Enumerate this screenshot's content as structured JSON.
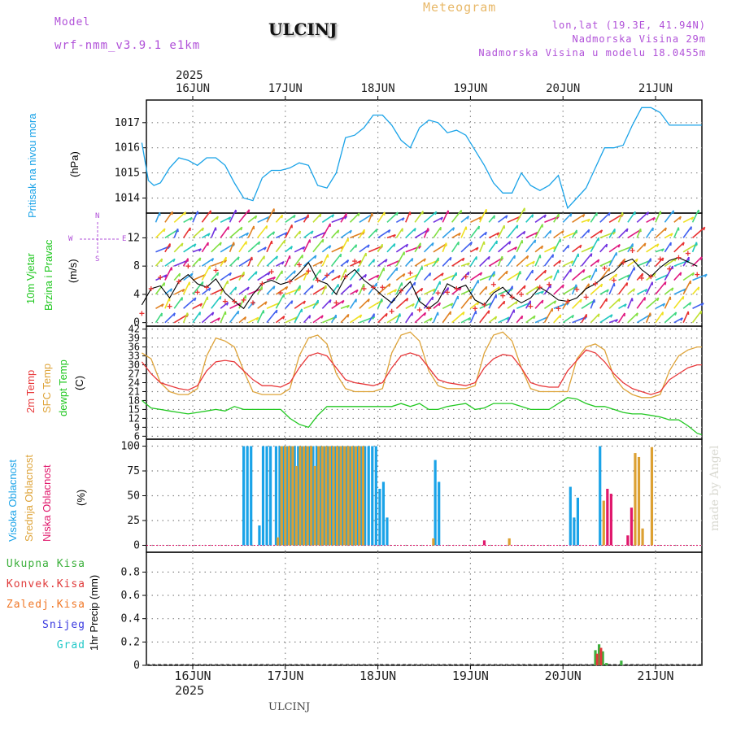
{
  "header": {
    "model_label": "Model",
    "model_name": "wrf-nmm_v3.9.1 e1km",
    "station": "ULCINJ",
    "meteogram": "Meteogram",
    "coords": "lon,lat (19.3E, 41.94N)",
    "altitude": "Nadmorska Visina 29m",
    "model_altitude": "Nadmorska Visina u modelu 18.0455m",
    "footer_station": "ULCINJ",
    "watermark": "made by Angel"
  },
  "colors": {
    "pressure": "#1aa3e8",
    "temp2m": "#e8383a",
    "sfc": "#dea43a",
    "dew": "#22c822",
    "high_cloud": "#1aa3e8",
    "mid_cloud": "#dca032",
    "low_cloud": "#e0186c",
    "total_precip": "#3cb03c",
    "conv_precip": "#e03a3a",
    "freezing": "#f07828",
    "snow": "#3a3ae0",
    "grad": "#20c8c8",
    "title_purple": "#b050d8",
    "meteo_orange": "#e8b868"
  },
  "chart_data": [
    {
      "type": "line",
      "panel": "pressure",
      "ylabel": "Pritisak na nivou mora",
      "unit": "(hPa)",
      "xlabel_year": "2025",
      "x_ticks": [
        "16JUN",
        "17JUN",
        "18JUN",
        "19JUN",
        "20JUN",
        "21JUN"
      ],
      "y_ticks": [
        1014,
        1015,
        1016,
        1017
      ],
      "ylim": [
        1013.4,
        1017.9
      ],
      "series": [
        {
          "x": [
            -0.55,
            -0.48,
            -0.42,
            -0.35,
            -0.25,
            -0.15,
            -0.05,
            0.05,
            0.15,
            0.25,
            0.35,
            0.45,
            0.55,
            0.65,
            0.75,
            0.85,
            0.95,
            1.05,
            1.15,
            1.25,
            1.35,
            1.45,
            1.55,
            1.65,
            1.75,
            1.85,
            1.95,
            2.05,
            2.15,
            2.25,
            2.35,
            2.45,
            2.55,
            2.65,
            2.75,
            2.85,
            2.95,
            3.05,
            3.15,
            3.25,
            3.35,
            3.45,
            3.55,
            3.65,
            3.75,
            3.85,
            3.95,
            4.05,
            4.15,
            4.25,
            4.35,
            4.45,
            4.55,
            4.65,
            4.75,
            4.85,
            4.95,
            5.05,
            5.15,
            5.25,
            5.35,
            5.45,
            5.5
          ],
          "y": [
            1016.2,
            1014.7,
            1014.5,
            1014.6,
            1015.2,
            1015.6,
            1015.5,
            1015.3,
            1015.6,
            1015.6,
            1015.3,
            1014.6,
            1014.0,
            1013.9,
            1014.8,
            1015.1,
            1015.1,
            1015.2,
            1015.4,
            1015.3,
            1014.5,
            1014.4,
            1015.0,
            1016.4,
            1016.5,
            1016.8,
            1017.3,
            1017.3,
            1016.9,
            1016.3,
            1016.0,
            1016.8,
            1017.1,
            1017.0,
            1016.6,
            1016.7,
            1016.5,
            1015.9,
            1015.3,
            1014.6,
            1014.2,
            1014.2,
            1015.0,
            1014.5,
            1014.3,
            1014.5,
            1014.9,
            1013.6,
            1014.0,
            1014.4,
            1015.2,
            1016.0,
            1016.0,
            1016.1,
            1016.9,
            1017.6,
            1017.6,
            1017.4,
            1016.9,
            1016.9,
            1016.9,
            1016.9,
            1016.9
          ]
        }
      ]
    },
    {
      "type": "scatter",
      "panel": "wind",
      "ylabel": "10m Vjetar",
      "ylabel2": "Brzina i Pravac",
      "unit": "(m/s)",
      "compass": "N",
      "compass_w": "W",
      "compass_e": "E",
      "compass_s": "S",
      "y_ticks": [
        0,
        4,
        8,
        12
      ],
      "ylim": [
        -0.5,
        15.5
      ],
      "series": [
        {
          "name": "speed",
          "x": [
            -0.55,
            -0.45,
            -0.35,
            -0.25,
            -0.15,
            -0.05,
            0.05,
            0.15,
            0.25,
            0.35,
            0.45,
            0.55,
            0.65,
            0.75,
            0.85,
            0.95,
            1.05,
            1.15,
            1.25,
            1.35,
            1.45,
            1.55,
            1.65,
            1.75,
            1.85,
            1.95,
            2.05,
            2.15,
            2.25,
            2.35,
            2.45,
            2.55,
            2.65,
            2.75,
            2.85,
            2.95,
            3.05,
            3.15,
            3.25,
            3.35,
            3.45,
            3.55,
            3.65,
            3.75,
            3.85,
            3.95,
            4.05,
            4.15,
            4.25,
            4.35,
            4.45,
            4.55,
            4.65,
            4.75,
            4.85,
            4.95,
            5.05,
            5.15,
            5.25,
            5.35,
            5.45
          ],
          "y": [
            2.5,
            4.8,
            5.2,
            3.5,
            5.8,
            6.8,
            5.5,
            5.0,
            6.2,
            4.2,
            3.0,
            2.0,
            4.0,
            5.5,
            6.0,
            5.4,
            5.8,
            7.0,
            8.5,
            6.0,
            5.5,
            4.0,
            6.5,
            7.5,
            6.0,
            5.0,
            3.8,
            2.8,
            4.5,
            5.8,
            3.0,
            2.0,
            3.0,
            5.5,
            4.8,
            5.3,
            3.2,
            2.5,
            4.2,
            5.0,
            3.6,
            2.8,
            3.5,
            5.0,
            4.2,
            3.2,
            3.0,
            3.5,
            4.8,
            5.5,
            6.5,
            7.2,
            8.5,
            9.0,
            7.5,
            6.5,
            7.8,
            8.8,
            9.2,
            8.6,
            8.0
          ]
        }
      ]
    },
    {
      "type": "line",
      "panel": "temperature",
      "ylabel": "2m Temp",
      "ylabel2": "SFC Temp",
      "ylabel3": "dewpt Temp",
      "unit": "(C)",
      "y_ticks": [
        6,
        9,
        12,
        15,
        18,
        21,
        24,
        27,
        30,
        33,
        36,
        39,
        42
      ],
      "ylim": [
        5,
        43
      ],
      "x": [
        -0.55,
        -0.45,
        -0.35,
        -0.25,
        -0.15,
        -0.05,
        0.05,
        0.15,
        0.25,
        0.35,
        0.45,
        0.55,
        0.65,
        0.75,
        0.85,
        0.95,
        1.05,
        1.15,
        1.25,
        1.35,
        1.45,
        1.55,
        1.65,
        1.75,
        1.85,
        1.95,
        2.05,
        2.15,
        2.25,
        2.35,
        2.45,
        2.55,
        2.65,
        2.75,
        2.85,
        2.95,
        3.05,
        3.15,
        3.25,
        3.35,
        3.45,
        3.55,
        3.65,
        3.75,
        3.85,
        3.95,
        4.05,
        4.15,
        4.25,
        4.35,
        4.45,
        4.55,
        4.65,
        4.75,
        4.85,
        4.95,
        5.05,
        5.15,
        5.25,
        5.35,
        5.45,
        5.5
      ],
      "series": [
        {
          "name": "2m",
          "values": [
            31,
            27,
            24,
            23,
            22,
            21.5,
            23,
            28,
            31,
            31.5,
            31,
            28,
            25,
            23,
            23,
            22.5,
            24,
            29,
            33,
            34,
            33,
            29,
            25,
            24,
            23.5,
            23,
            24,
            29,
            33,
            34,
            33,
            29,
            25,
            24,
            23.5,
            23,
            24,
            29,
            32,
            33.5,
            33,
            29,
            24,
            23,
            22.5,
            22.5,
            28,
            31.5,
            35,
            34,
            31,
            27,
            24,
            22,
            21,
            20,
            21,
            25,
            27,
            29,
            30,
            30
          ]
        },
        {
          "name": "SFC",
          "values": [
            34,
            32,
            24,
            21,
            20,
            20,
            22,
            33,
            39,
            38,
            36,
            28,
            21,
            20,
            20,
            20,
            22,
            33,
            39,
            40,
            37,
            27,
            22,
            21,
            21,
            21,
            22,
            34,
            40,
            41,
            38,
            28,
            23,
            22,
            22,
            22,
            23,
            34,
            40,
            41,
            38,
            29,
            22,
            21,
            21,
            21,
            21,
            32,
            36,
            37,
            35,
            26,
            22,
            20,
            19,
            19,
            20,
            28,
            33,
            35,
            36,
            36
          ]
        },
        {
          "name": "dewpt",
          "values": [
            18,
            15.5,
            15,
            14.5,
            14,
            13.5,
            14,
            14.5,
            15,
            14.5,
            16,
            15,
            15,
            15,
            15,
            15,
            12,
            10,
            9,
            13,
            16,
            16,
            16,
            16,
            16,
            16,
            16,
            16,
            17,
            16,
            17,
            15,
            15,
            16,
            16.5,
            17,
            15,
            15.5,
            17,
            17,
            17,
            16,
            15,
            15,
            15,
            17,
            19,
            18.5,
            17,
            16,
            16,
            15,
            14,
            13.5,
            13.5,
            13,
            12.5,
            11.5,
            11.5,
            9.5,
            7,
            6.5
          ]
        }
      ]
    },
    {
      "type": "bar",
      "panel": "clouds",
      "ylabel": "Visoka Oblacnost",
      "ylabel2": "Srednja Oblacnost",
      "ylabel3": "Niska Oblacnost",
      "unit": "(%)",
      "y_ticks": [
        0,
        25,
        50,
        75,
        100
      ],
      "ylim": [
        -7,
        107
      ],
      "series": [
        {
          "name": "high",
          "x": [
            0.55,
            0.59,
            0.63,
            0.72,
            0.76,
            0.8,
            0.84,
            0.9,
            0.94,
            0.98,
            1.02,
            1.06,
            1.1,
            1.14,
            1.18,
            1.22,
            1.26,
            1.3,
            1.34,
            1.38,
            1.42,
            1.46,
            1.5,
            1.54,
            1.58,
            1.62,
            1.66,
            1.7,
            1.74,
            1.78,
            1.82,
            1.86,
            1.9,
            1.94,
            1.98,
            2.02,
            2.06,
            2.1,
            2.62,
            2.66,
            4.08,
            4.12,
            4.16,
            4.4
          ],
          "values": [
            100,
            100,
            100,
            20,
            100,
            100,
            100,
            100,
            100,
            100,
            100,
            100,
            100,
            100,
            100,
            100,
            100,
            100,
            100,
            100,
            100,
            100,
            100,
            100,
            100,
            100,
            100,
            100,
            100,
            100,
            100,
            100,
            100,
            100,
            100,
            57,
            64,
            28,
            86,
            64,
            59,
            28,
            48,
            100
          ]
        },
        {
          "name": "mid",
          "x": [
            0.92,
            0.96,
            1.0,
            1.04,
            1.08,
            1.12,
            1.16,
            1.2,
            1.24,
            1.28,
            1.32,
            1.36,
            1.4,
            1.44,
            1.48,
            1.52,
            1.56,
            1.6,
            1.64,
            1.68,
            1.72,
            1.76,
            1.8,
            1.84,
            2.6,
            3.42,
            4.44,
            4.78,
            4.82,
            4.86,
            4.96
          ],
          "values": [
            8,
            100,
            100,
            100,
            100,
            80,
            100,
            100,
            100,
            100,
            80,
            100,
            100,
            100,
            100,
            100,
            100,
            100,
            100,
            100,
            100,
            100,
            100,
            100,
            7,
            7,
            45,
            93,
            89,
            17,
            99
          ]
        },
        {
          "name": "low",
          "x": [
            3.15,
            4.48,
            4.52,
            4.7,
            4.74
          ],
          "values": [
            5,
            57,
            52,
            10,
            38
          ]
        }
      ]
    },
    {
      "type": "bar",
      "panel": "precip",
      "ylabel": "1hr Precip (mm)",
      "y_ticks": [
        "0",
        "0.2",
        "0.4",
        "0.6",
        "0.8"
      ],
      "ylim": [
        0,
        0.97
      ],
      "bottom_ticks": [
        "16JUN",
        "17JUN",
        "18JUN",
        "19JUN",
        "20JUN",
        "21JUN"
      ],
      "bottom_year": "2025",
      "legend": [
        "Ukupna Kisa",
        "Konvek.Kisa",
        "Zaledj.Kisa",
        "Snijeg",
        "Grad"
      ],
      "series": [
        {
          "name": "Ukupna Kisa",
          "x": [
            4.35,
            4.39,
            4.43,
            4.47,
            4.63
          ],
          "values": [
            0.13,
            0.18,
            0.12,
            0.02,
            0.04
          ]
        },
        {
          "name": "Konvek.Kisa",
          "x": [
            4.37,
            4.41
          ],
          "values": [
            0.1,
            0.15
          ]
        }
      ]
    }
  ]
}
